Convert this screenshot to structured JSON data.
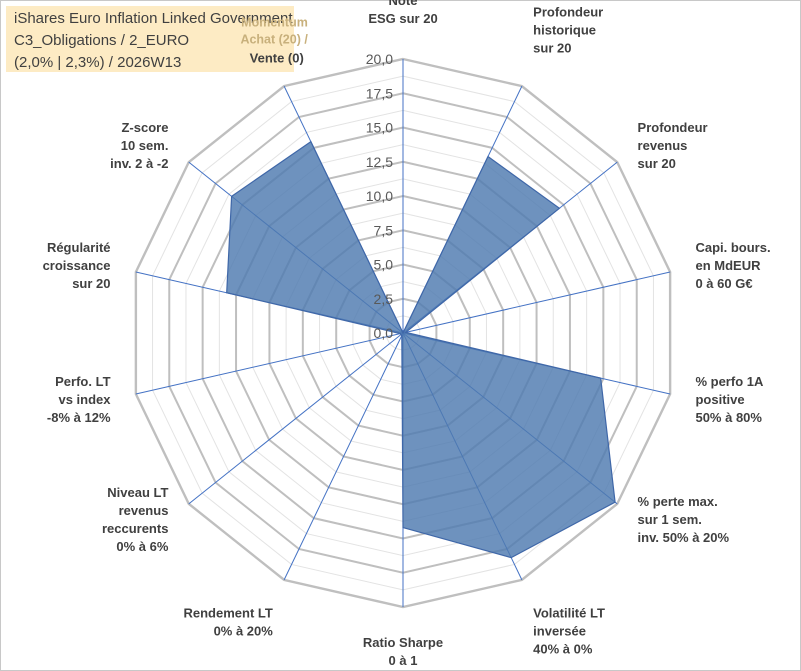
{
  "title_box": {
    "line1": "iShares Euro Inflation Linked Government",
    "line2": "C3_Obligations / 2_EURO",
    "line3": "(2,0% | 2,3%) / 2026W13"
  },
  "colors": {
    "grid": "#bfbfbf",
    "spoke": "#4472c4",
    "fill": "#4e7ab0",
    "stroke": "#3f67a8",
    "title_bg": "#fdebc4",
    "label": "#404040",
    "momentum": "#c8b07c"
  },
  "chart_data": {
    "type": "radar",
    "ylim": [
      0,
      20
    ],
    "ticks": [
      "0,0",
      "2,5",
      "5,0",
      "7,5",
      "10,0",
      "12,5",
      "15,0",
      "17,5",
      "20,0"
    ],
    "tick_values": [
      0,
      2.5,
      5,
      7.5,
      10,
      12.5,
      15,
      17.5,
      20
    ],
    "axes": [
      {
        "label": [
          "Note",
          "ESG sur 20"
        ],
        "value": 0
      },
      {
        "label": [
          "Profondeur",
          "historique",
          "sur 20"
        ],
        "value": 14.3
      },
      {
        "label": [
          "Profondeur",
          "revenus",
          "sur 20"
        ],
        "value": 14.6
      },
      {
        "label": [
          "Capi. bours.",
          "en MdEUR",
          "0 à 60 G€"
        ],
        "value": 0.2
      },
      {
        "label": [
          "% perfo 1A",
          "positive",
          "50% à 80%"
        ],
        "value": 14.8
      },
      {
        "label": [
          "% perte max.",
          "sur 1 sem.",
          "inv. 50% à 20%"
        ],
        "value": 19.8
      },
      {
        "label": [
          "Volatilité LT",
          "inversée",
          "40% à 0%"
        ],
        "value": 18.2
      },
      {
        "label": [
          "Ratio Sharpe",
          "0 à 1"
        ],
        "value": 14.2
      },
      {
        "label": [
          "Rendement LT",
          "0% à 20%"
        ],
        "value": 0.2
      },
      {
        "label": [
          "Niveau LT",
          "revenus",
          "reccurents",
          "0% à 6%"
        ],
        "value": 0.2
      },
      {
        "label": [
          "Perfo. LT",
          "vs index",
          "-8% à 12%"
        ],
        "value": 0.2
      },
      {
        "label": [
          "Régularité",
          "croissance",
          "sur 20"
        ],
        "value": 13.2
      },
      {
        "label": [
          "Z-score",
          "10 sem.",
          "inv. 2 à -2"
        ],
        "value": 16.0,
        "label_extra": [
          "Momentum",
          "Achat (20) /",
          "Vente (0)"
        ],
        "extra_value": 15.5,
        "extra_at": 1.0
      }
    ],
    "momentum_label": [
      "Momentum",
      "Achat (20) /"
    ],
    "momentum_tail": "Vente (0)"
  }
}
